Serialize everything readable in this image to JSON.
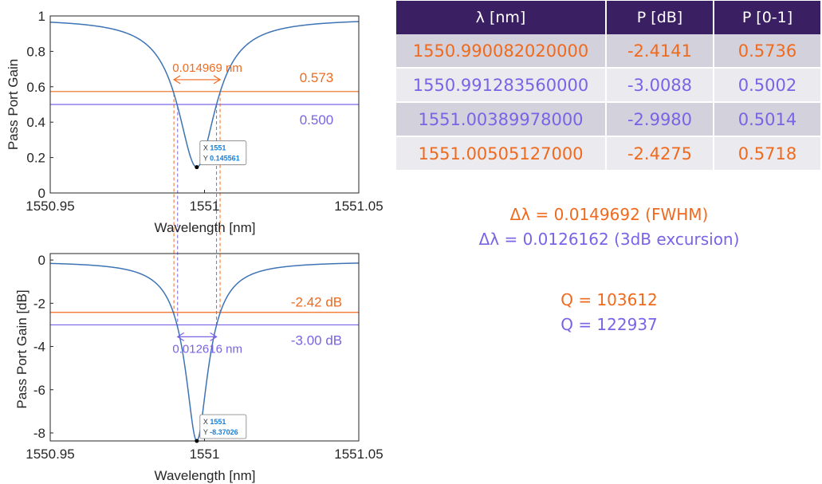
{
  "colors": {
    "orange": "#f06a1e",
    "purple": "#7a63e6",
    "curve": "#3d73b4",
    "table_header_bg": "#3b1f63",
    "row_odd_bg": "#d3d1dc",
    "row_even_bg": "#ebeaef"
  },
  "chart_data": [
    {
      "type": "line",
      "id": "linear",
      "title": "",
      "xlabel": "Wavelength [nm]",
      "ylabel": "Pass Port Gain",
      "xlim": [
        1550.95,
        1551.05
      ],
      "ylim": [
        0,
        1
      ],
      "xticks": [
        1550.95,
        1551,
        1551.05
      ],
      "xtick_labels": [
        "1550.95",
        "1551",
        "1551.05"
      ],
      "yticks": [
        0,
        0.2,
        0.4,
        0.6,
        0.8,
        1
      ],
      "ytick_labels": [
        "0",
        "0.2",
        "0.4",
        "0.6",
        "0.8",
        "1"
      ],
      "grid": false,
      "resonance": {
        "center": 1550.9975,
        "fwhm": 0.0149692,
        "min_gain": 0.145561,
        "max_gain": 0.985
      },
      "hlines": [
        {
          "y": 0.573,
          "label": "0.573",
          "color": "orange"
        },
        {
          "y": 0.5,
          "label": "0.500",
          "color": "purple"
        }
      ],
      "vlines": [
        {
          "x": 1550.99008202,
          "color": "orange"
        },
        {
          "x": 1550.99128356,
          "color": "purple"
        },
        {
          "x": 1551.00389978,
          "color": "purple"
        },
        {
          "x": 1551.00505127,
          "color": "orange"
        }
      ],
      "width_annotation": {
        "label": "0.014969 nm",
        "from": 1550.99008202,
        "to": 1551.00505127,
        "y": 0.64,
        "color": "orange"
      },
      "datatip": {
        "x_label": "X",
        "x_value": "1551",
        "y_label": "Y",
        "y_value": "0.145561",
        "x": 1550.9975,
        "y": 0.145561
      }
    },
    {
      "type": "line",
      "id": "db",
      "title": "",
      "xlabel": "Wavelength [nm]",
      "ylabel": "Pass Port Gain [dB]",
      "xlim": [
        1550.95,
        1551.05
      ],
      "ylim": [
        -8.37026,
        0.3
      ],
      "xticks": [
        1550.95,
        1551,
        1551.05
      ],
      "xtick_labels": [
        "1550.95",
        "1551",
        "1551.05"
      ],
      "yticks": [
        -8,
        -6,
        -4,
        -2,
        0
      ],
      "ytick_labels": [
        "-8",
        "-6",
        "-4",
        "-2",
        "0"
      ],
      "grid": false,
      "resonance": {
        "center": 1550.9975,
        "fwhm": 0.0149692,
        "min_gain": 0.145561,
        "max_gain": 0.985
      },
      "hlines": [
        {
          "y": -2.42,
          "label": "-2.42 dB",
          "color": "orange"
        },
        {
          "y": -3.0,
          "label": "-3.00 dB",
          "color": "purple"
        }
      ],
      "width_annotation": {
        "label": "0.012616 nm",
        "from": 1550.99128356,
        "to": 1551.00389978,
        "y": -3.55,
        "color": "purple"
      },
      "datatip": {
        "x_label": "X",
        "x_value": "1551",
        "y_label": "Y",
        "y_value": "-8.37026",
        "x": 1550.9975,
        "y": -8.37026
      }
    }
  ],
  "table": {
    "headers": [
      "λ [nm]",
      "P [dB]",
      "P [0-1]"
    ],
    "rows": [
      {
        "lambda": "1550.990082020000",
        "p_db": "-2.4141",
        "p_lin": "0.5736",
        "color": "orange"
      },
      {
        "lambda": "1550.991283560000",
        "p_db": "-3.0088",
        "p_lin": "0.5002",
        "color": "purple"
      },
      {
        "lambda": "1551.00389978000",
        "p_db": "-2.9980",
        "p_lin": "0.5014",
        "color": "purple"
      },
      {
        "lambda": "1551.00505127000",
        "p_db": "-2.4275",
        "p_lin": "0.5718",
        "color": "orange"
      }
    ]
  },
  "summary": {
    "fwhm": "Δλ = 0.0149692 (FWHM)",
    "excursion": "Δλ = 0.0126162 (3dB excursion)",
    "q_fwhm": "Q = 103612",
    "q_excursion": "Q = 122937"
  }
}
